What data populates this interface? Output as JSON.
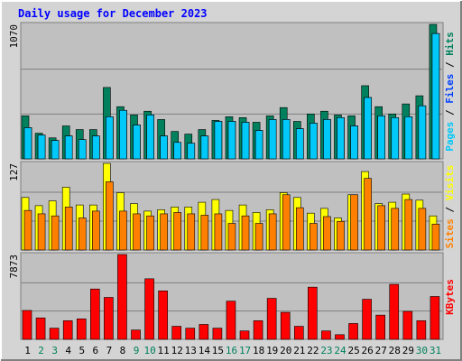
{
  "chart_data": {
    "type": "bar",
    "title": "Daily usage for December 2023",
    "categories": [
      "1",
      "2",
      "3",
      "4",
      "5",
      "6",
      "7",
      "8",
      "9",
      "10",
      "11",
      "12",
      "13",
      "14",
      "15",
      "16",
      "17",
      "18",
      "19",
      "20",
      "21",
      "22",
      "23",
      "24",
      "25",
      "26",
      "27",
      "28",
      "29",
      "30",
      "31"
    ],
    "category_colors": [
      "#000",
      "#00805C",
      "#00805C",
      "#000",
      "#000",
      "#000",
      "#000",
      "#000",
      "#00805C",
      "#00805C",
      "#000",
      "#000",
      "#000",
      "#000",
      "#000",
      "#00805C",
      "#00805C",
      "#000",
      "#000",
      "#000",
      "#000",
      "#000",
      "#00805C",
      "#00805C",
      "#000",
      "#000",
      "#000",
      "#000",
      "#000",
      "#00805C",
      "#00805C"
    ],
    "legend_separator": " / ",
    "panels": [
      {
        "ylim": [
          0,
          1070
        ],
        "yticks": [
          1070
        ],
        "series": [
          {
            "name": "Hits",
            "color": "#00805C",
            "values": [
              342,
              204,
              167,
              262,
              233,
              233,
              568,
              415,
              349,
              379,
              313,
              218,
              197,
              233,
              306,
              335,
              328,
              291,
              342,
              408,
              298,
              357,
              379,
              349,
              342,
              582,
              415,
              357,
              437,
              502,
              1070
            ]
          },
          {
            "name": "Files",
            "color": "#0040FF",
            "values": [
              248,
              189,
              146,
              182,
              153,
              182,
              335,
              386,
              269,
              349,
              182,
              131,
              124,
              182,
              298,
              298,
              291,
              226,
              313,
              313,
              240,
              284,
              313,
              328,
              262,
              488,
              342,
              328,
              335,
              422,
              997
            ]
          },
          {
            "name": "Pages",
            "color": "#00C8F8",
            "values": [
              248,
              189,
              146,
              182,
              153,
              182,
              335,
              386,
              269,
              349,
              182,
              131,
              124,
              182,
              298,
              298,
              291,
              226,
              313,
              313,
              240,
              284,
              313,
              328,
              262,
              488,
              342,
              328,
              335,
              422,
              997
            ]
          }
        ]
      },
      {
        "ylim": [
          0,
          127
        ],
        "yticks": [
          127
        ],
        "series": [
          {
            "name": "Visits",
            "color": "#FFFF00",
            "values": [
              77,
              65,
              72,
              92,
              66,
              66,
              127,
              84,
              68,
              57,
              59,
              63,
              63,
              70,
              74,
              58,
              66,
              55,
              59,
              84,
              77,
              54,
              61,
              47,
              81,
              115,
              68,
              70,
              82,
              73,
              50
            ]
          },
          {
            "name": "Sites",
            "color": "#FF8000",
            "values": [
              58,
              53,
              50,
              63,
              47,
              57,
              100,
              57,
              53,
              50,
              53,
              55,
              53,
              51,
              53,
              39,
              50,
              39,
              53,
              81,
              62,
              39,
              49,
              42,
              81,
              105,
              65,
              61,
              74,
              61,
              38
            ]
          }
        ]
      },
      {
        "ylim": [
          0,
          7873
        ],
        "yticks": [
          7873
        ],
        "series": [
          {
            "name": "KBytes",
            "color": "#FF0000",
            "values": [
              2682,
              1990,
              1038,
              1730,
              1903,
              4671,
              3893,
              7873,
              865,
              5623,
              4498,
              1211,
              1038,
              1384,
              1038,
              3547,
              779,
              1730,
              3806,
              2509,
              1211,
              4844,
              779,
              433,
              1471,
              3720,
              2249,
              5104,
              2595,
              1730,
              3979
            ]
          }
        ]
      }
    ]
  }
}
